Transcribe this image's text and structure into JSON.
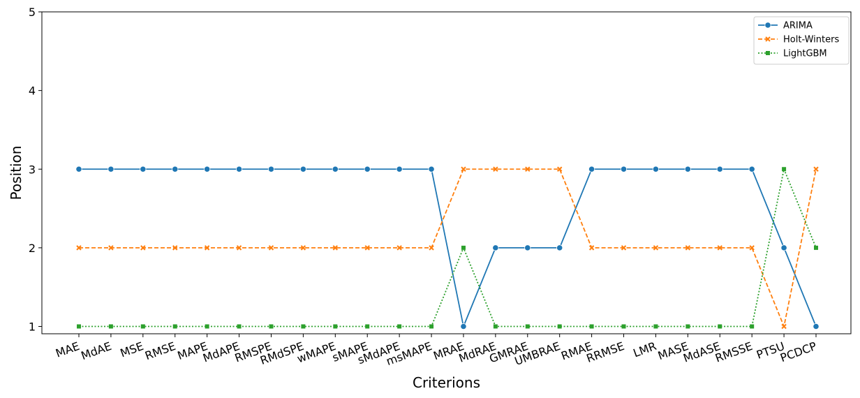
{
  "chart_data": {
    "type": "line",
    "xlabel": "Criterions",
    "ylabel": "Position",
    "ylim": [
      1,
      5
    ],
    "yticks": [
      1,
      2,
      3,
      4,
      5
    ],
    "grid": false,
    "legend_position": "top-right",
    "categories": [
      "MAE",
      "MdAE",
      "MSE",
      "RMSE",
      "MAPE",
      "MdAPE",
      "RMSPE",
      "RMdSPE",
      "wMAPE",
      "sMAPE",
      "sMdAPE",
      "msMAPE",
      "MRAE",
      "MdRAE",
      "GMRAE",
      "UMBRAE",
      "RMAE",
      "RRMSE",
      "LMR",
      "MASE",
      "MdASE",
      "RMSSE",
      "PTSU",
      "PCDCP"
    ],
    "series": [
      {
        "name": "ARIMA",
        "color": "#1f77b4",
        "dash": "solid",
        "marker": "circle",
        "values": [
          3,
          3,
          3,
          3,
          3,
          3,
          3,
          3,
          3,
          3,
          3,
          3,
          1,
          2,
          2,
          2,
          3,
          3,
          3,
          3,
          3,
          3,
          2,
          1
        ]
      },
      {
        "name": "Holt-Winters",
        "color": "#ff7f0e",
        "dash": "dashed",
        "marker": "x",
        "values": [
          2,
          2,
          2,
          2,
          2,
          2,
          2,
          2,
          2,
          2,
          2,
          2,
          3,
          3,
          3,
          3,
          2,
          2,
          2,
          2,
          2,
          2,
          1,
          3
        ]
      },
      {
        "name": "LightGBM",
        "color": "#2ca02c",
        "dash": "dotted",
        "marker": "square",
        "values": [
          1,
          1,
          1,
          1,
          1,
          1,
          1,
          1,
          1,
          1,
          1,
          1,
          2,
          1,
          1,
          1,
          1,
          1,
          1,
          1,
          1,
          1,
          3,
          2
        ]
      }
    ]
  }
}
